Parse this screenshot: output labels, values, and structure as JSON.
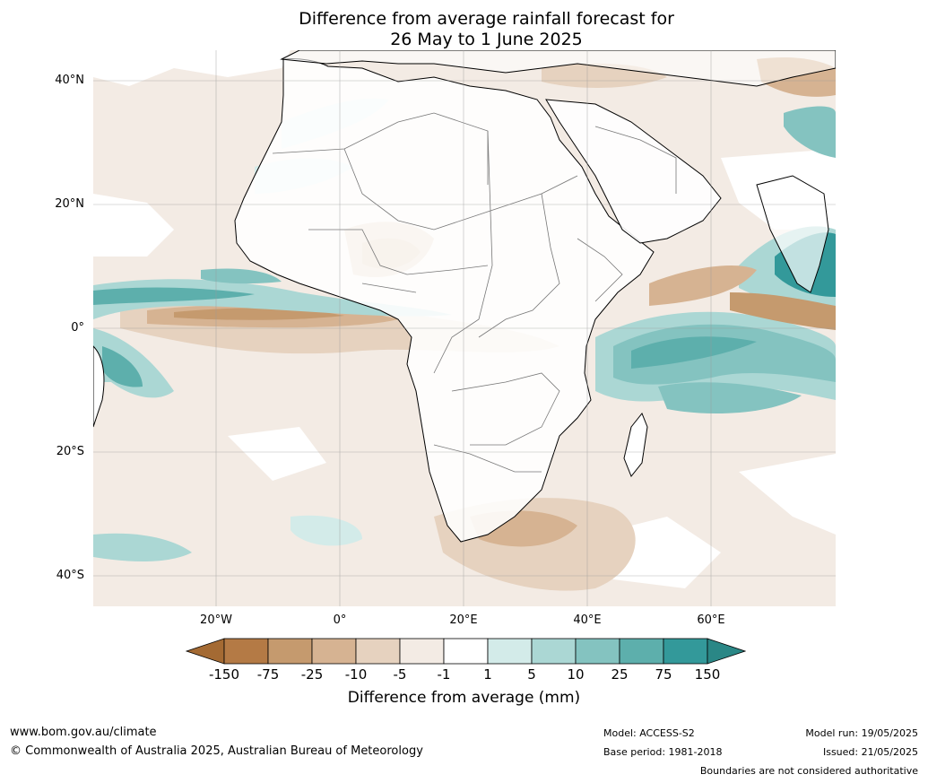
{
  "title": {
    "line1": "Difference from average rainfall forecast for",
    "line2": "26 May to 1 June 2025"
  },
  "map": {
    "lat_ticks": [
      "40°N",
      "20°N",
      "0°",
      "20°S",
      "40°S"
    ],
    "lon_ticks": [
      "20°W",
      "0°",
      "20°E",
      "40°E",
      "60°E"
    ]
  },
  "colorbar": {
    "labels": [
      "-150",
      "-75",
      "-25",
      "-10",
      "-5",
      "-1",
      "1",
      "5",
      "10",
      "25",
      "75",
      "150"
    ],
    "colors": [
      "#a46a33",
      "#b47a45",
      "#c59a6e",
      "#d6b392",
      "#e6d2bf",
      "#f3ebe4",
      "#ffffff",
      "#d3ebe9",
      "#abd7d4",
      "#84c3c0",
      "#5dafac",
      "#33999a",
      "#2a8786"
    ],
    "title": "Difference from average (mm)"
  },
  "footer": {
    "website": "www.bom.gov.au/climate",
    "copyright": "© Commonwealth of Australia 2025, Australian Bureau of Meteorology",
    "model": "Model: ACCESS-S2",
    "base_period": "Base period: 1981-2018",
    "model_run": "Model run: 19/05/2025",
    "issued": "Issued: 21/05/2025",
    "disclaimer": "Boundaries are not considered authoritative"
  }
}
